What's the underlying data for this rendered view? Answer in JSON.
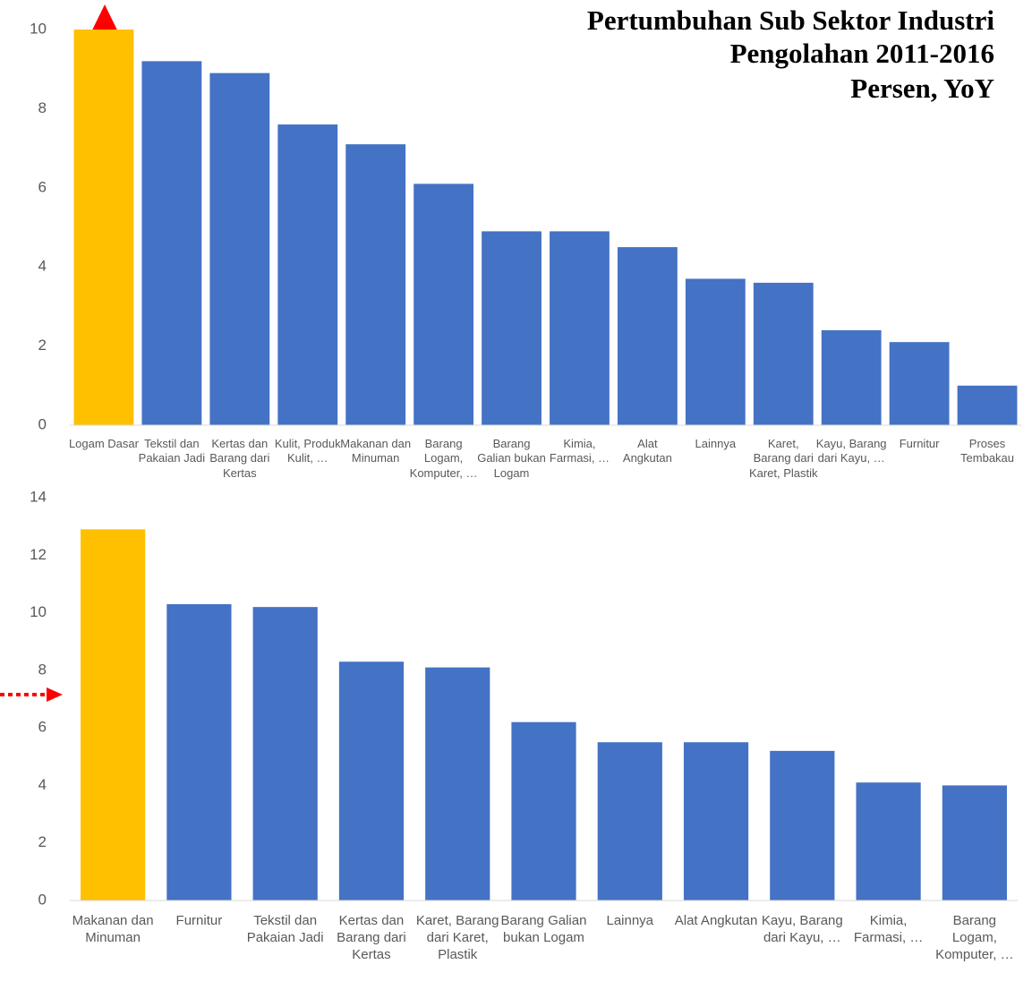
{
  "chart_data": [
    {
      "type": "bar",
      "title": "Pertumbuhan Sub Sektor Industri Pengolahan 2011-2016",
      "subtitle": "Persen, YoY",
      "categories": [
        "Logam Dasar",
        "Tekstil dan Pakaian Jadi",
        "Kertas dan Barang dari Kertas",
        "Kulit, Produk Kulit, …",
        "Makanan dan Minuman",
        "Barang Logam, Komputer, …",
        "Barang Galian bukan Logam",
        "Kimia, Farmasi, …",
        "Alat Angkutan",
        "Lainnya",
        "Karet, Barang dari Karet, Plastik",
        "Kayu, Barang dari Kayu, …",
        "Furnitur",
        "Proses Tembakau"
      ],
      "values": [
        10,
        9.2,
        8.9,
        7.6,
        7.1,
        6.1,
        4.9,
        4.9,
        4.5,
        3.7,
        3.6,
        2.4,
        2.1,
        1.0
      ],
      "colors": [
        "#FFC000",
        "#4472C4",
        "#4472C4",
        "#4472C4",
        "#4472C4",
        "#4472C4",
        "#4472C4",
        "#4472C4",
        "#4472C4",
        "#4472C4",
        "#4472C4",
        "#4472C4",
        "#4472C4",
        "#4472C4"
      ],
      "ylim": [
        0,
        10
      ],
      "yticks": [
        0,
        2,
        4,
        6,
        8,
        10
      ],
      "grid": false
    },
    {
      "type": "bar",
      "categories": [
        "Makanan dan Minuman",
        "Furnitur",
        "Tekstil dan Pakaian Jadi",
        "Kertas dan Barang dari Kertas",
        "Karet, Barang dari Karet, Plastik",
        "Barang Galian bukan Logam",
        "Lainnya",
        "Alat Angkutan",
        "Kayu, Barang dari Kayu, …",
        "Kimia, Farmasi, …",
        "Barang Logam, Komputer, …"
      ],
      "values": [
        12.9,
        10.3,
        10.2,
        8.3,
        8.1,
        6.2,
        5.5,
        5.5,
        5.2,
        4.1,
        4.0
      ],
      "colors": [
        "#FFC000",
        "#4472C4",
        "#4472C4",
        "#4472C4",
        "#4472C4",
        "#4472C4",
        "#4472C4",
        "#4472C4",
        "#4472C4",
        "#4472C4",
        "#4472C4"
      ],
      "ylim": [
        0,
        14
      ],
      "yticks": [
        0,
        2,
        4,
        6,
        8,
        10,
        12,
        14
      ],
      "grid": false
    }
  ]
}
